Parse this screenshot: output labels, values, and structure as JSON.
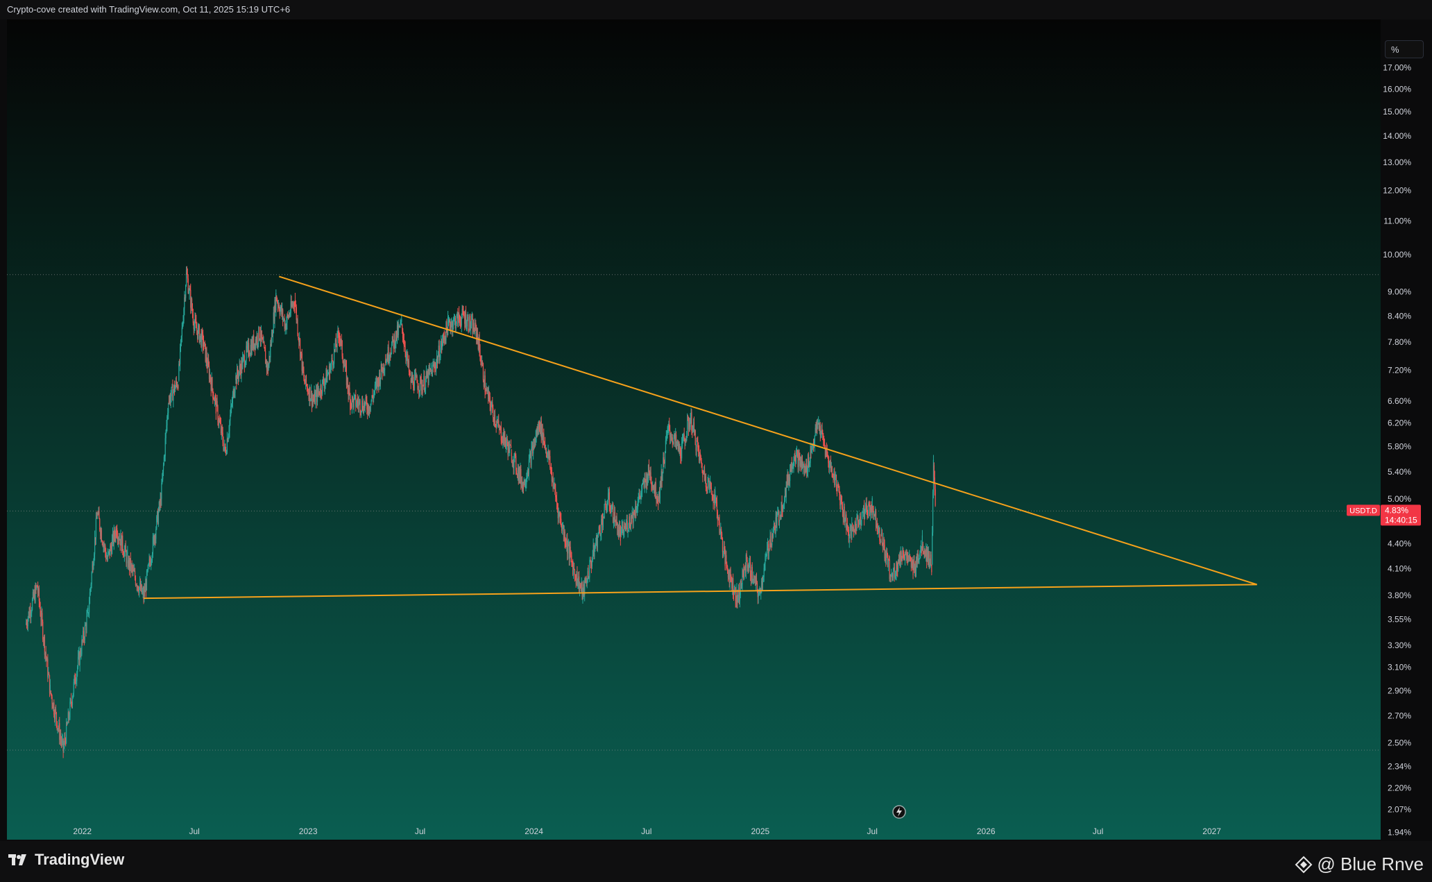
{
  "header": {
    "caption": "Crypto-cove created with TradingView.com, Oct 11, 2025 15:19 UTC+6"
  },
  "scale_button": {
    "label": "%"
  },
  "footer": {
    "brand": "TradingView",
    "watermark": "@ Blue Rnve"
  },
  "price_tag": {
    "symbol": "USDT.D",
    "value": "4.83%",
    "countdown": "14:40:15"
  },
  "colors": {
    "up": "#26a69a",
    "down": "#ef5350",
    "trendline": "#f7a21b",
    "tag": "#f23645"
  },
  "chart_data": {
    "type": "candlestick",
    "title": "",
    "y_scale": "log",
    "ylim": [
      1.9,
      19.5
    ],
    "y_ticks": [
      "17.00%",
      "16.00%",
      "15.00%",
      "14.00%",
      "13.00%",
      "12.00%",
      "11.00%",
      "10.00%",
      "9.00%",
      "8.40%",
      "7.80%",
      "7.20%",
      "6.60%",
      "6.20%",
      "5.80%",
      "5.40%",
      "5.00%",
      "4.40%",
      "4.10%",
      "3.80%",
      "3.55%",
      "3.30%",
      "3.10%",
      "2.90%",
      "2.70%",
      "2.50%",
      "2.34%",
      "2.20%",
      "2.07%",
      "1.94%"
    ],
    "x_ticks": [
      "2022",
      "Jul",
      "2023",
      "Jul",
      "2024",
      "Jul",
      "2025",
      "Jul",
      "2026",
      "Jul",
      "2027"
    ],
    "series": [
      {
        "name": "USDT.D",
        "points": [
          [
            "2021-10-01",
            3.5
          ],
          [
            "2021-10-20",
            3.9
          ],
          [
            "2021-11-10",
            2.9
          ],
          [
            "2021-12-01",
            2.45
          ],
          [
            "2021-12-20",
            3.0
          ],
          [
            "2022-01-10",
            3.6
          ],
          [
            "2022-01-25",
            4.8
          ],
          [
            "2022-02-10",
            4.2
          ],
          [
            "2022-02-25",
            4.6
          ],
          [
            "2022-03-15",
            4.2
          ],
          [
            "2022-04-10",
            3.78
          ],
          [
            "2022-04-25",
            4.4
          ],
          [
            "2022-05-08",
            5.0
          ],
          [
            "2022-05-20",
            6.6
          ],
          [
            "2022-06-05",
            7.0
          ],
          [
            "2022-06-18",
            9.5
          ],
          [
            "2022-07-01",
            8.2
          ],
          [
            "2022-07-15",
            7.8
          ],
          [
            "2022-08-05",
            6.5
          ],
          [
            "2022-08-20",
            5.7
          ],
          [
            "2022-09-05",
            7.0
          ],
          [
            "2022-09-25",
            7.6
          ],
          [
            "2022-10-15",
            8.0
          ],
          [
            "2022-10-28",
            7.2
          ],
          [
            "2022-11-10",
            8.9
          ],
          [
            "2022-11-25",
            8.2
          ],
          [
            "2022-12-10",
            8.8
          ],
          [
            "2022-12-25",
            7.0
          ],
          [
            "2023-01-10",
            6.6
          ],
          [
            "2023-02-05",
            7.2
          ],
          [
            "2023-02-20",
            8.0
          ],
          [
            "2023-03-10",
            6.6
          ],
          [
            "2023-04-10",
            6.5
          ],
          [
            "2023-05-05",
            7.4
          ],
          [
            "2023-06-01",
            8.2
          ],
          [
            "2023-06-15",
            7.0
          ],
          [
            "2023-07-05",
            6.9
          ],
          [
            "2023-07-25",
            7.3
          ],
          [
            "2023-08-15",
            8.2
          ],
          [
            "2023-09-10",
            8.4
          ],
          [
            "2023-10-01",
            8.0
          ],
          [
            "2023-10-15",
            6.8
          ],
          [
            "2023-11-05",
            6.1
          ],
          [
            "2023-11-25",
            5.7
          ],
          [
            "2023-12-15",
            5.2
          ],
          [
            "2024-01-10",
            6.2
          ],
          [
            "2024-01-25",
            5.6
          ],
          [
            "2024-02-10",
            4.8
          ],
          [
            "2024-03-05",
            4.1
          ],
          [
            "2024-03-20",
            3.82
          ],
          [
            "2024-04-10",
            4.4
          ],
          [
            "2024-04-30",
            5.0
          ],
          [
            "2024-05-20",
            4.5
          ],
          [
            "2024-06-10",
            4.8
          ],
          [
            "2024-07-05",
            5.4
          ],
          [
            "2024-07-20",
            5.0
          ],
          [
            "2024-08-05",
            6.1
          ],
          [
            "2024-08-25",
            5.7
          ],
          [
            "2024-09-10",
            6.3
          ],
          [
            "2024-09-30",
            5.4
          ],
          [
            "2024-10-20",
            5.0
          ],
          [
            "2024-11-05",
            4.2
          ],
          [
            "2024-11-25",
            3.75
          ],
          [
            "2024-12-10",
            4.2
          ],
          [
            "2024-12-30",
            3.8
          ],
          [
            "2025-01-15",
            4.4
          ],
          [
            "2025-02-05",
            4.9
          ],
          [
            "2025-02-25",
            5.7
          ],
          [
            "2025-03-15",
            5.4
          ],
          [
            "2025-04-05",
            6.2
          ],
          [
            "2025-04-20",
            5.6
          ],
          [
            "2025-05-05",
            5.2
          ],
          [
            "2025-05-25",
            4.5
          ],
          [
            "2025-06-15",
            4.8
          ],
          [
            "2025-07-01",
            4.9
          ],
          [
            "2025-07-15",
            4.5
          ],
          [
            "2025-08-01",
            4.0
          ],
          [
            "2025-08-20",
            4.3
          ],
          [
            "2025-09-05",
            4.1
          ],
          [
            "2025-09-20",
            4.4
          ],
          [
            "2025-10-05",
            4.15
          ],
          [
            "2025-10-08",
            5.5
          ],
          [
            "2025-10-11",
            4.83
          ]
        ]
      }
    ],
    "trendlines": [
      {
        "from": [
          "2022-11-15",
          9.4
        ],
        "to": [
          "2027-03-15",
          3.92
        ]
      },
      {
        "from": [
          "2022-04-10",
          3.77
        ],
        "to": [
          "2027-03-15",
          3.92
        ]
      }
    ],
    "hlines": [
      9.45,
      4.83,
      2.45
    ],
    "grid": false
  }
}
